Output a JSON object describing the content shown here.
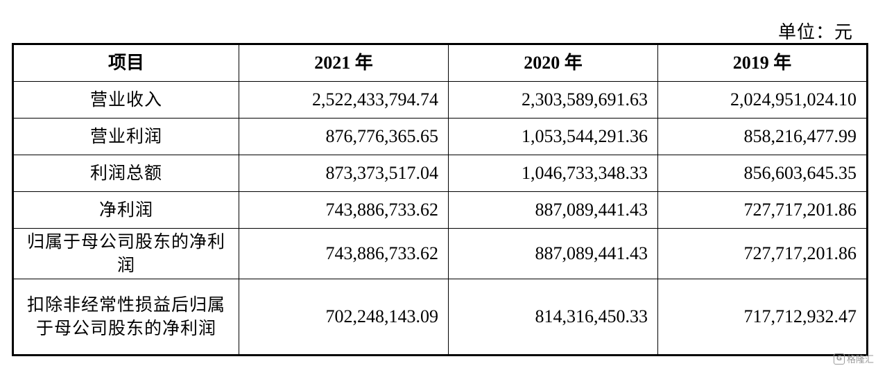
{
  "unit_label": "单位：元",
  "table": {
    "headers": [
      "项目",
      "2021 年",
      "2020 年",
      "2019 年"
    ],
    "rows": [
      {
        "label": "营业收入",
        "values": [
          "2,522,433,794.74",
          "2,303,589,691.63",
          "2,024,951,024.10"
        ]
      },
      {
        "label": "营业利润",
        "values": [
          "876,776,365.65",
          "1,053,544,291.36",
          "858,216,477.99"
        ]
      },
      {
        "label": "利润总额",
        "values": [
          "873,373,517.04",
          "1,046,733,348.33",
          "856,603,645.35"
        ]
      },
      {
        "label": "净利润",
        "values": [
          "743,886,733.62",
          "887,089,441.43",
          "727,717,201.86"
        ]
      },
      {
        "label": "归属于母公司股东的净利润",
        "values": [
          "743,886,733.62",
          "887,089,441.43",
          "727,717,201.86"
        ]
      },
      {
        "label": "扣除非经常性损益后归属于母公司股东的净利润",
        "values": [
          "702,248,143.09",
          "814,316,450.33",
          "717,712,932.47"
        ]
      }
    ]
  },
  "watermark": {
    "mark": "G",
    "text": "格隆汇"
  }
}
